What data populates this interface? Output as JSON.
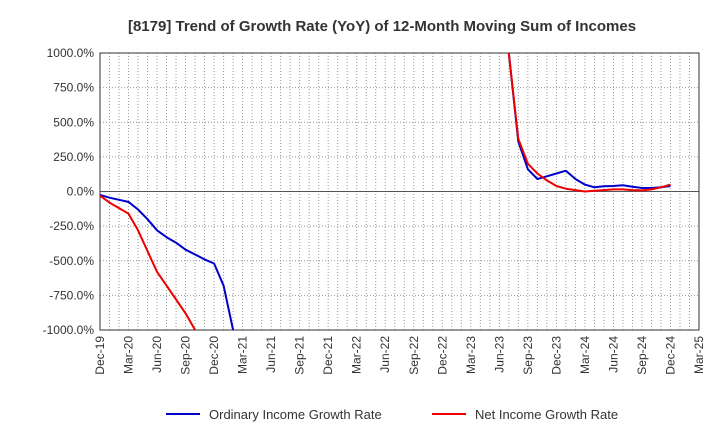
{
  "chart_data": {
    "type": "line",
    "title": "[8179]  Trend of Growth Rate (YoY) of 12-Month Moving Sum of Incomes",
    "xlabel": "",
    "ylabel": "",
    "x_tick_labels": [
      "Dec-19",
      "Mar-20",
      "Jun-20",
      "Sep-20",
      "Dec-20",
      "Mar-21",
      "Jun-21",
      "Sep-21",
      "Dec-21",
      "Mar-22",
      "Jun-22",
      "Sep-22",
      "Dec-22",
      "Mar-23",
      "Jun-23",
      "Sep-23",
      "Dec-23",
      "Mar-24",
      "Jun-24",
      "Sep-24",
      "Dec-24",
      "Mar-25"
    ],
    "y_tick_values": [
      1000,
      750,
      500,
      250,
      0,
      -250,
      -500,
      -750,
      -1000
    ],
    "y_tick_labels": [
      "1000.0%",
      "750.0%",
      "500.0%",
      "250.0%",
      "0.0%",
      "-250.0%",
      "-500.0%",
      "-750.0%",
      "-1000.0%"
    ],
    "ylim": [
      -1000,
      1000
    ],
    "y_unit": "%",
    "grid": true,
    "grid_style": "dotted",
    "legend_position": "bottom",
    "series": [
      {
        "name": "Ordinary Income Growth Rate",
        "color": "#0000cc",
        "points": [
          [
            "Dec-19",
            -25
          ],
          [
            "Jan-20",
            -45
          ],
          [
            "Feb-20",
            -60
          ],
          [
            "Mar-20",
            -75
          ],
          [
            "Apr-20",
            -130
          ],
          [
            "May-20",
            -200
          ],
          [
            "Jun-20",
            -280
          ],
          [
            "Jul-20",
            -330
          ],
          [
            "Aug-20",
            -370
          ],
          [
            "Sep-20",
            -420
          ],
          [
            "Oct-20",
            -455
          ],
          [
            "Nov-20",
            -490
          ],
          [
            "Dec-20",
            -520
          ],
          [
            "Jan-21",
            -680
          ],
          [
            "Feb-21",
            -1000
          ],
          [
            "Jul-23",
            1000
          ],
          [
            "Aug-23",
            360
          ],
          [
            "Sep-23",
            160
          ],
          [
            "Oct-23",
            90
          ],
          [
            "Nov-23",
            110
          ],
          [
            "Dec-23",
            130
          ],
          [
            "Jan-24",
            150
          ],
          [
            "Feb-24",
            90
          ],
          [
            "Mar-24",
            50
          ],
          [
            "Apr-24",
            30
          ],
          [
            "May-24",
            38
          ],
          [
            "Jun-24",
            40
          ],
          [
            "Jul-24",
            45
          ],
          [
            "Aug-24",
            35
          ],
          [
            "Sep-24",
            25
          ],
          [
            "Oct-24",
            25
          ],
          [
            "Nov-24",
            30
          ],
          [
            "Dec-24",
            40
          ]
        ]
      },
      {
        "name": "Net Income Growth Rate",
        "color": "#ee0000",
        "points": [
          [
            "Dec-19",
            -30
          ],
          [
            "Jan-20",
            -80
          ],
          [
            "Feb-20",
            -120
          ],
          [
            "Mar-20",
            -160
          ],
          [
            "Apr-20",
            -280
          ],
          [
            "May-20",
            -430
          ],
          [
            "Jun-20",
            -580
          ],
          [
            "Jul-20",
            -680
          ],
          [
            "Aug-20",
            -780
          ],
          [
            "Sep-20",
            -880
          ],
          [
            "Oct-20",
            -1000
          ],
          [
            "Jul-23",
            1000
          ],
          [
            "Aug-23",
            380
          ],
          [
            "Sep-23",
            200
          ],
          [
            "Oct-23",
            130
          ],
          [
            "Nov-23",
            80
          ],
          [
            "Dec-23",
            40
          ],
          [
            "Jan-24",
            20
          ],
          [
            "Feb-24",
            10
          ],
          [
            "Mar-24",
            0
          ],
          [
            "Apr-24",
            5
          ],
          [
            "May-24",
            10
          ],
          [
            "Jun-24",
            15
          ],
          [
            "Jul-24",
            15
          ],
          [
            "Aug-24",
            10
          ],
          [
            "Sep-24",
            8
          ],
          [
            "Oct-24",
            15
          ],
          [
            "Nov-24",
            30
          ],
          [
            "Dec-24",
            50
          ]
        ]
      }
    ]
  }
}
